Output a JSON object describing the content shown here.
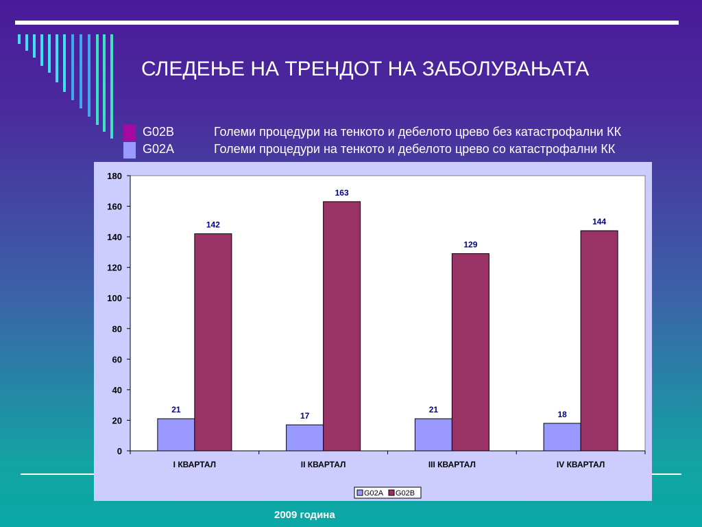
{
  "slide": {
    "title": "СЛЕДЕЊЕ НА ТРЕНДОТ НА ЗАБОЛУВАЊАТА",
    "footer_note": "2009  година"
  },
  "legend_items": [
    {
      "code": "G02B",
      "description": "Големи процедури на тенкото и дебелото црево без катастрофални КК",
      "color": "#a40aa0"
    },
    {
      "code": "G02A",
      "description": "Големи процедури на тенкото и дебелото црево со катастрофални КК",
      "color": "#9999ff"
    }
  ],
  "chart_data": {
    "type": "bar",
    "categories": [
      "I КВАРТАЛ",
      "II КВАРТАЛ",
      "III КВАРТАЛ",
      "IV КВАРТАЛ"
    ],
    "series": [
      {
        "name": "G02A",
        "values": [
          21,
          17,
          21,
          18
        ],
        "color": "#9999ff"
      },
      {
        "name": "G02B",
        "values": [
          142,
          163,
          129,
          144
        ],
        "color": "#993366"
      }
    ],
    "title": "",
    "xlabel": "",
    "ylabel": "",
    "ylim": [
      0,
      180
    ],
    "yticks": [
      0,
      20,
      40,
      60,
      80,
      100,
      120,
      140,
      160,
      180
    ],
    "grid": false,
    "data_labels": true,
    "legend_position": "bottom-center"
  }
}
